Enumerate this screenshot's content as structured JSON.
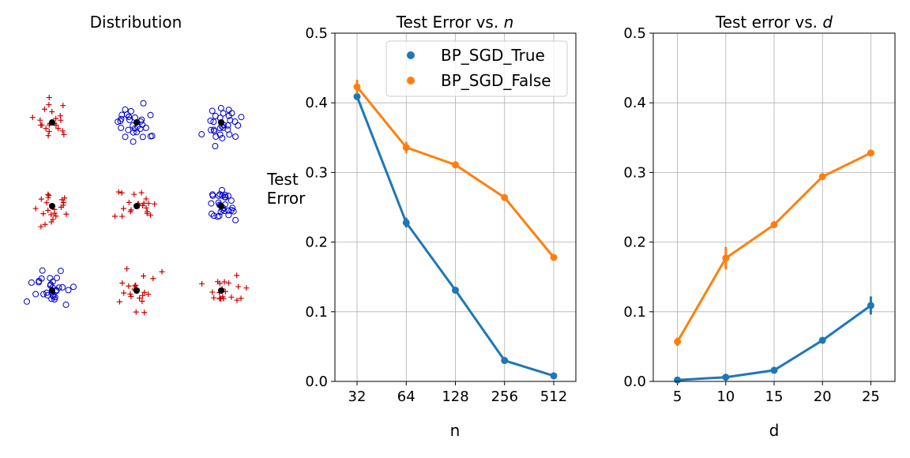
{
  "chart_data": [
    {
      "type": "scatter",
      "title": "Distribution",
      "grid": false,
      "axes_visible": false,
      "marker_legend": {
        "plus_color": "#cc0000",
        "circle_color": "#0000cc",
        "center_color": "#000000"
      }
    },
    {
      "type": "line",
      "title": "Test Error vs. n",
      "title_prefix": "Test Error vs. ",
      "title_var": "n",
      "xlabel": "n",
      "ylabel": "Test\nError",
      "ylabel_lines": [
        "Test",
        "Error"
      ],
      "x_categories": [
        "32",
        "64",
        "128",
        "256",
        "512"
      ],
      "ylim": [
        0,
        0.5
      ],
      "yticks": [
        "0.0",
        "0.1",
        "0.2",
        "0.3",
        "0.4",
        "0.5"
      ],
      "grid": true,
      "legend_position": "top-right",
      "series": [
        {
          "name": "BP_SGD_True",
          "color": "#1f77b4",
          "values": [
            0.409,
            0.228,
            0.131,
            0.03,
            0.008
          ],
          "err": [
            0.003,
            0.007,
            0.003,
            0.002,
            0.002
          ]
        },
        {
          "name": "BP_SGD_False",
          "color": "#ff7f0e",
          "values": [
            0.423,
            0.336,
            0.311,
            0.264,
            0.178
          ],
          "err": [
            0.01,
            0.008,
            0.005,
            0.003,
            0.002
          ]
        }
      ]
    },
    {
      "type": "line",
      "title": "Test error vs. d",
      "title_prefix": "Test error vs. ",
      "title_var": "d",
      "xlabel": "d",
      "x": [
        5,
        10,
        15,
        20,
        25
      ],
      "xticks": [
        "5",
        "10",
        "15",
        "20",
        "25"
      ],
      "xlim": [
        2.5,
        27.5
      ],
      "ylim": [
        0,
        0.5
      ],
      "yticks": [
        "0.0",
        "0.1",
        "0.2",
        "0.3",
        "0.4",
        "0.5"
      ],
      "grid": true,
      "series": [
        {
          "name": "BP_SGD_True",
          "color": "#1f77b4",
          "values": [
            0.002,
            0.006,
            0.016,
            0.059,
            0.109
          ],
          "err": [
            0.002,
            0.002,
            0.003,
            0.003,
            0.013
          ]
        },
        {
          "name": "BP_SGD_False",
          "color": "#ff7f0e",
          "values": [
            0.057,
            0.177,
            0.225,
            0.294,
            0.328
          ],
          "err": [
            0.006,
            0.016,
            0.004,
            0.003,
            0.004
          ]
        }
      ]
    }
  ]
}
